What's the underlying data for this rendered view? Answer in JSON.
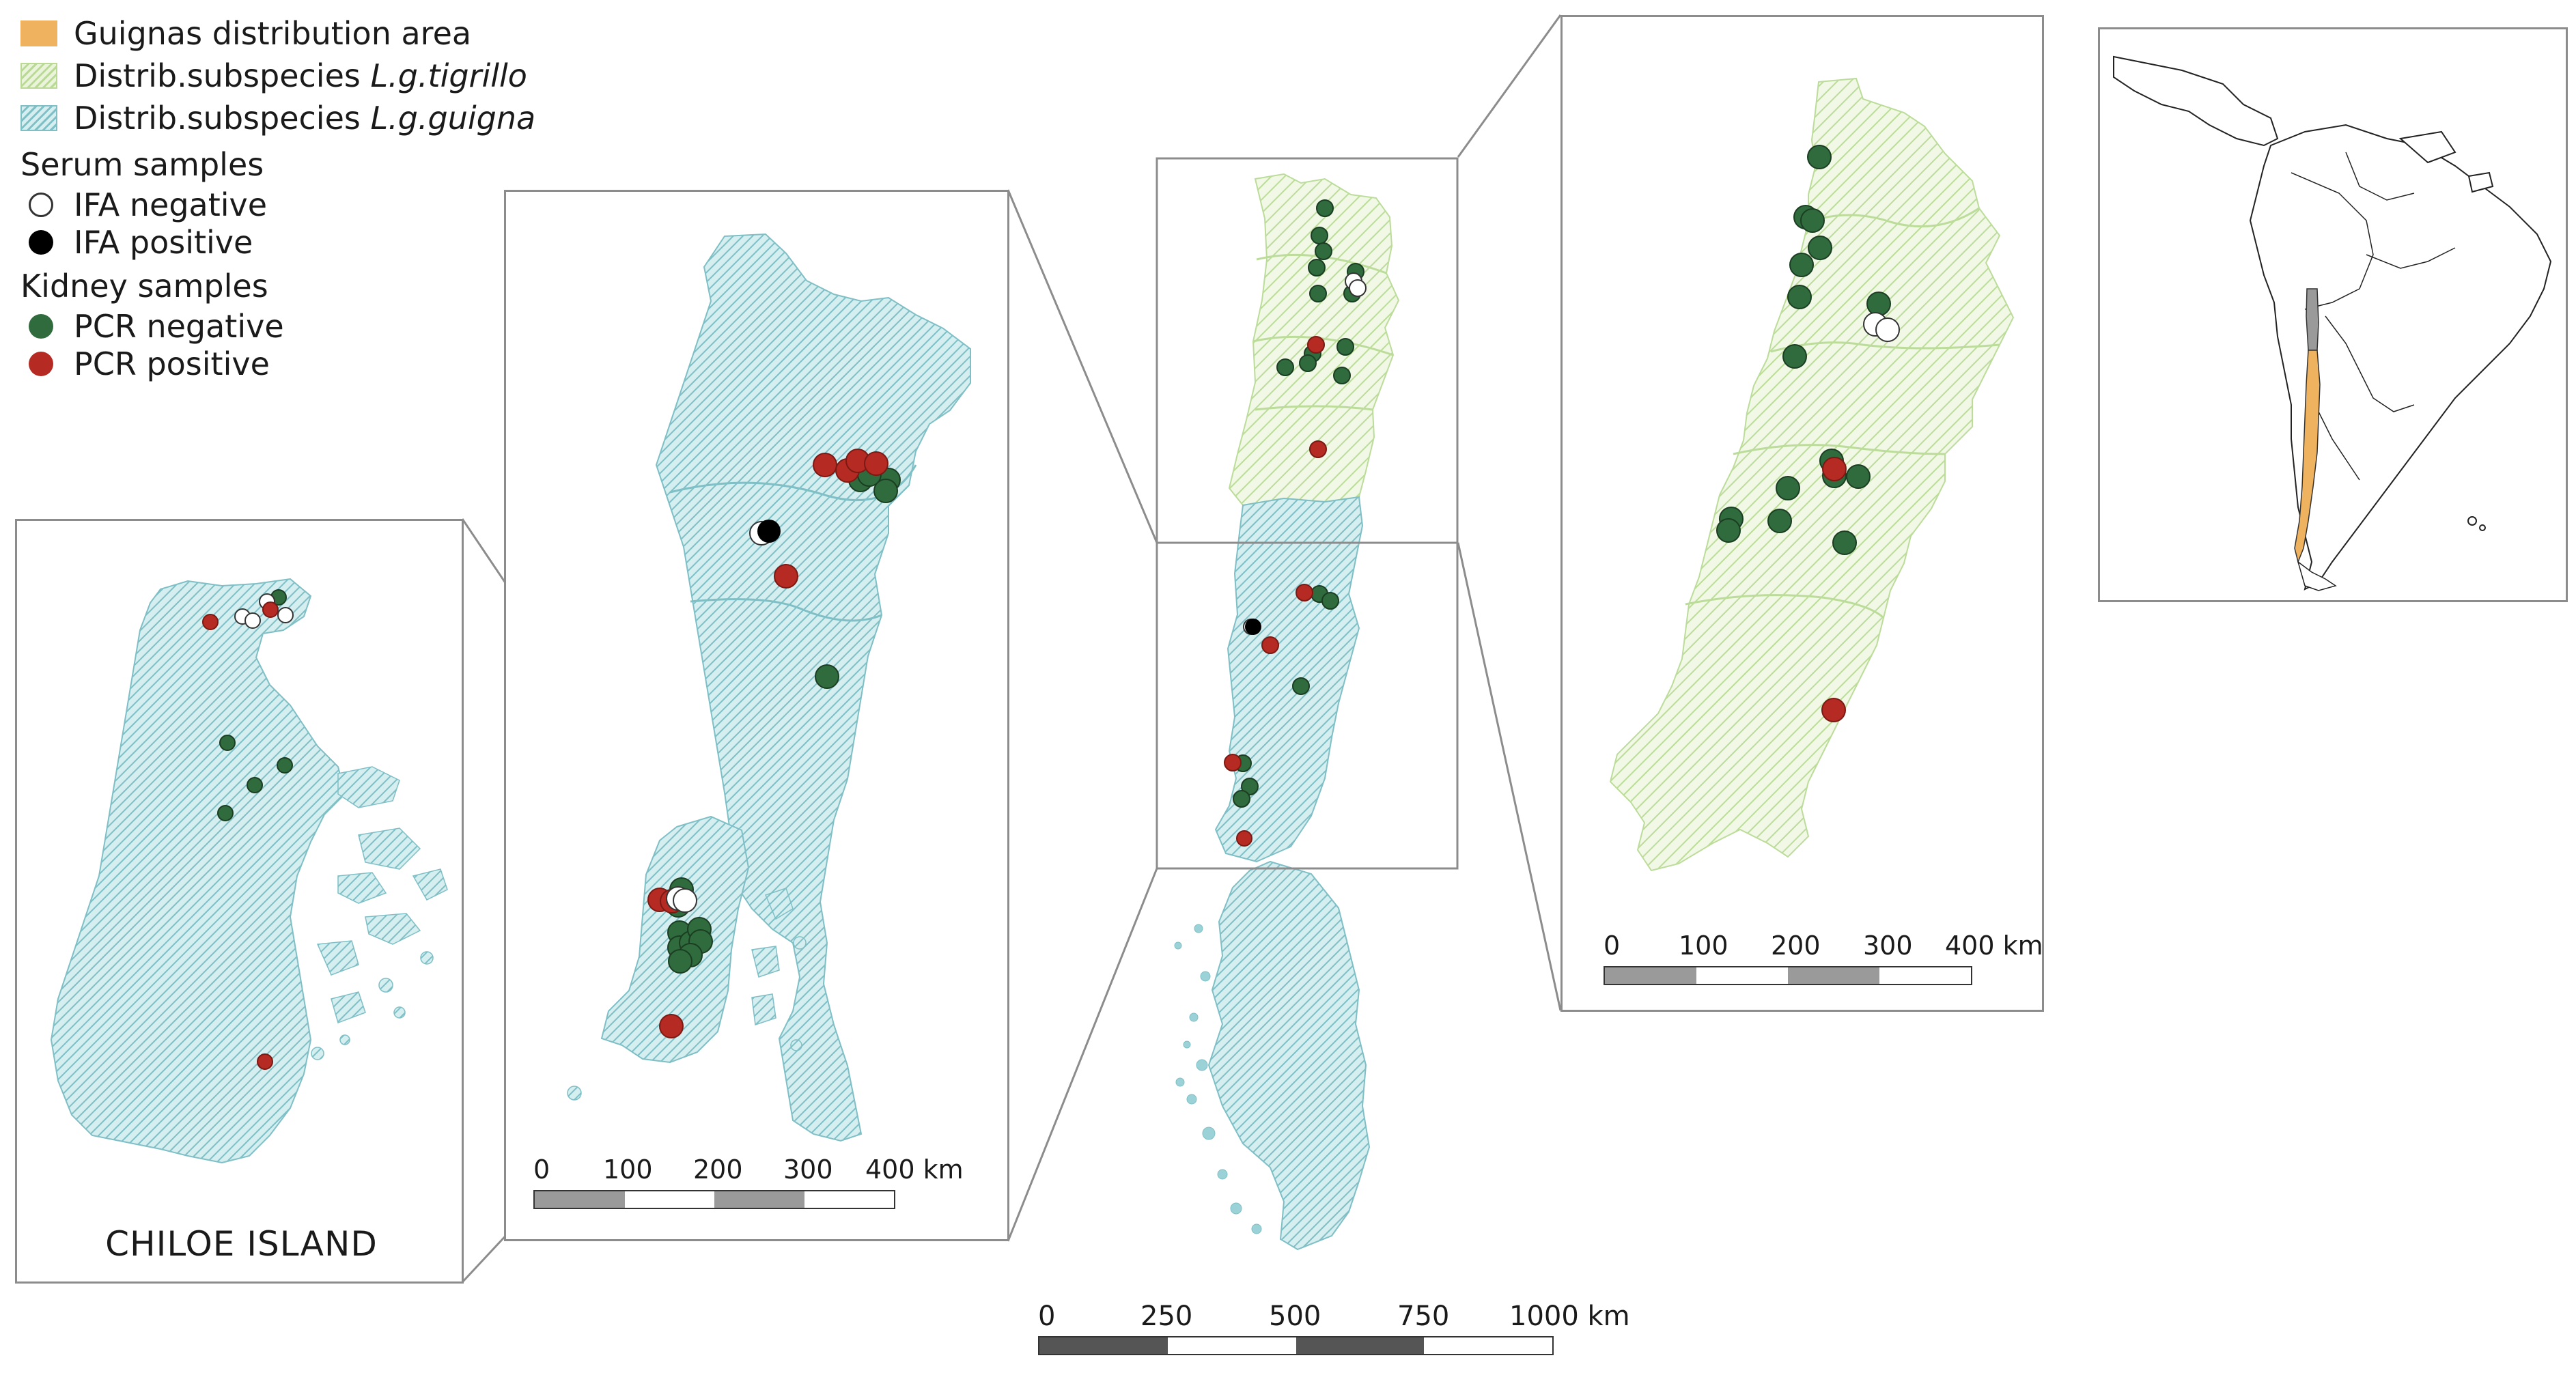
{
  "legend": {
    "area": "Guignas distribution area",
    "tigrillo_prefix": "Distrib.subspecies ",
    "tigrillo_species": "L.g.tigrillo",
    "guigna_prefix": "Distrib.subspecies ",
    "guigna_species": "L.g.guigna",
    "serum_header": "Serum samples",
    "ifa_negative": "IFA negative",
    "ifa_positive": "IFA positive",
    "kidney_header": "Kidney samples",
    "pcr_negative": "PCR negative",
    "pcr_positive": "PCR positive"
  },
  "colors": {
    "area": "#efb35f",
    "tigrillo": "#b9d995",
    "guigna": "#7fbfc6",
    "pcr_negative": "#2f6b3d",
    "pcr_positive": "#b52a22",
    "ifa_positive": "#000000",
    "ifa_negative": "#ffffff"
  },
  "chiloe": {
    "title": "CHILOE ISLAND"
  },
  "scales": {
    "left": {
      "ticks": [
        "0",
        "100",
        "200",
        "300",
        "400 km"
      ]
    },
    "right": {
      "ticks": [
        "0",
        "100",
        "200",
        "300",
        "400 km"
      ]
    },
    "main": {
      "ticks": [
        "0",
        "250",
        "500",
        "750",
        "1000 km"
      ]
    }
  }
}
